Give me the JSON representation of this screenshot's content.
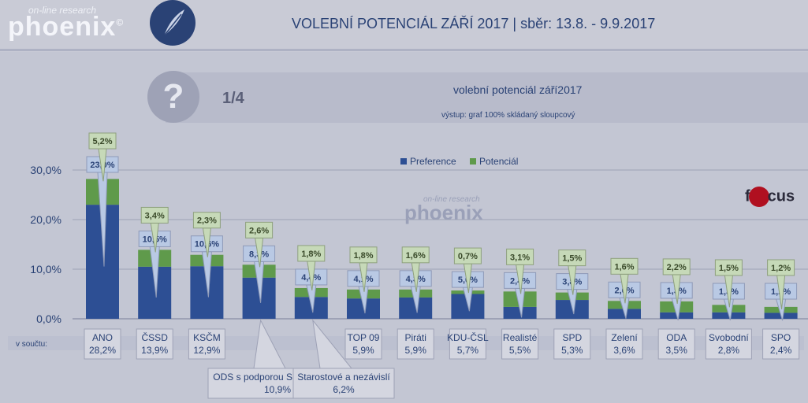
{
  "logo": {
    "tagline": "on-line research",
    "name": "phoenix",
    "symbol": "©"
  },
  "header": {
    "title": "VOLEBNÍ POTENCIÁL ZÁŘÍ 2017  |  sběr: 13.8. - 9.9.2017"
  },
  "question": {
    "icon": "?",
    "number": "1/4",
    "title": "volební potenciál září2017",
    "subtitle": "výstup: graf 100% skládaný sloupcový"
  },
  "focus_logo": {
    "pre": "f",
    "post": "cus"
  },
  "watermark": {
    "small": "on-line research",
    "name": "phoenix"
  },
  "sum_label": "v součtu:",
  "colors": {
    "preference": "#2d4f94",
    "potential": "#5f9a4b",
    "label_blue": "#b9c9e4",
    "label_green": "#c6d9b8"
  },
  "chart_data": {
    "type": "bar",
    "stacked": true,
    "categories": [
      "ANO",
      "ČSSD",
      "KSČM",
      "ODS s podporou Soukromníků",
      "Starostové a nezávislí",
      "TOP 09",
      "Piráti",
      "KDU-ČSL",
      "Realisté",
      "SPD",
      "Zelení",
      "ODA",
      "Svobodní",
      "SPO"
    ],
    "series": [
      {
        "name": "Preference",
        "values": [
          23.0,
          10.5,
          10.6,
          8.3,
          4.4,
          4.1,
          4.3,
          5.0,
          2.4,
          3.8,
          2.0,
          1.3,
          1.3,
          1.2
        ],
        "labels": [
          "23,0%",
          "10,5%",
          "10,6%",
          "8,3%",
          "4,4%",
          "4,1%",
          "4,3%",
          "5,0%",
          "2,4%",
          "3,8%",
          "2,0%",
          "1,3%",
          "1,3%",
          "1,2%"
        ]
      },
      {
        "name": "Potenciál",
        "values": [
          5.2,
          3.4,
          2.3,
          2.6,
          1.8,
          1.8,
          1.6,
          0.7,
          3.1,
          1.5,
          1.6,
          2.2,
          1.5,
          1.2
        ],
        "labels": [
          "5,2%",
          "3,4%",
          "2,3%",
          "2,6%",
          "1,8%",
          "1,8%",
          "1,6%",
          "0,7%",
          "3,1%",
          "1,5%",
          "1,6%",
          "2,2%",
          "1,5%",
          "1,2%"
        ]
      }
    ],
    "totals": [
      "28,2%",
      "13,9%",
      "12,9%",
      "10,9%",
      "6,2%",
      "5,9%",
      "5,9%",
      "5,7%",
      "5,5%",
      "5,3%",
      "3,6%",
      "3,5%",
      "2,8%",
      "2,4%"
    ],
    "y_ticks": [
      0,
      10,
      20,
      30
    ],
    "y_tick_labels": [
      "0,0%",
      "10,0%",
      "20,0%",
      "30,0%"
    ],
    "ylim": [
      0,
      30
    ]
  }
}
